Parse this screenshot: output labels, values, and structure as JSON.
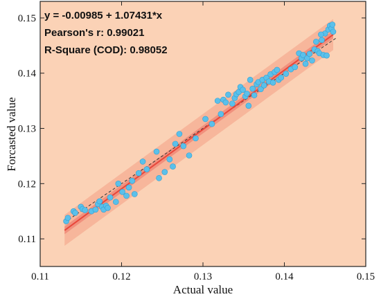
{
  "chart_data": {
    "type": "scatter",
    "xlabel": "Actual value",
    "ylabel": "Forcasted value",
    "xlim": [
      0.11,
      0.15
    ],
    "ylim": [
      0.105,
      0.153
    ],
    "xticks": [
      0.11,
      0.12,
      0.13,
      0.14,
      0.15
    ],
    "yticks": [
      0.11,
      0.12,
      0.13,
      0.14,
      0.15
    ],
    "xtick_labels": [
      "0.11",
      "0.12",
      "0.13",
      "0.14",
      "0.15"
    ],
    "ytick_labels": [
      "0.11",
      "0.12",
      "0.13",
      "0.14",
      "0.15"
    ],
    "annotations": [
      "y = -0.00985 + 1.07431*x",
      "Pearson's r: 0.99021",
      "R-Square (COD): 0.98052"
    ],
    "fit": {
      "intercept": -0.00985,
      "slope": 1.07431,
      "x_range": [
        0.113,
        0.146
      ]
    },
    "confidence_band_halfwidth": 0.0007,
    "prediction_band_halfwidth": 0.0028,
    "identity_line": true,
    "grid": false,
    "colors": {
      "background": "#fbd2b6",
      "points": "#5bc0ea",
      "points_edge": "#2f9fd3",
      "fit_line": "#e8463a",
      "confidence_band": "#f08a78",
      "prediction_band": "#f6ac92",
      "identity_line": "#333333"
    },
    "points": [
      [
        0.1132,
        0.1132
      ],
      [
        0.1134,
        0.1138
      ],
      [
        0.1141,
        0.115
      ],
      [
        0.1143,
        0.1147
      ],
      [
        0.115,
        0.1158
      ],
      [
        0.1152,
        0.1154
      ],
      [
        0.1155,
        0.1152
      ],
      [
        0.1163,
        0.115
      ],
      [
        0.1168,
        0.1153
      ],
      [
        0.1171,
        0.1163
      ],
      [
        0.1173,
        0.1168
      ],
      [
        0.1176,
        0.1158
      ],
      [
        0.1178,
        0.1153
      ],
      [
        0.1181,
        0.116
      ],
      [
        0.1183,
        0.1156
      ],
      [
        0.1186,
        0.1175
      ],
      [
        0.1193,
        0.1167
      ],
      [
        0.1196,
        0.12
      ],
      [
        0.1201,
        0.1185
      ],
      [
        0.1206,
        0.1178
      ],
      [
        0.1209,
        0.1193
      ],
      [
        0.1213,
        0.1205
      ],
      [
        0.1216,
        0.1181
      ],
      [
        0.1221,
        0.1219
      ],
      [
        0.1226,
        0.124
      ],
      [
        0.1231,
        0.1226
      ],
      [
        0.1243,
        0.1258
      ],
      [
        0.1246,
        0.121
      ],
      [
        0.1253,
        0.1221
      ],
      [
        0.1259,
        0.1244
      ],
      [
        0.1263,
        0.1231
      ],
      [
        0.1266,
        0.1272
      ],
      [
        0.1271,
        0.129
      ],
      [
        0.1276,
        0.1268
      ],
      [
        0.1283,
        0.1251
      ],
      [
        0.1291,
        0.1282
      ],
      [
        0.1303,
        0.1317
      ],
      [
        0.1311,
        0.1308
      ],
      [
        0.1318,
        0.135
      ],
      [
        0.1322,
        0.1326
      ],
      [
        0.1325,
        0.1352
      ],
      [
        0.1328,
        0.1347
      ],
      [
        0.1331,
        0.1361
      ],
      [
        0.1336,
        0.1345
      ],
      [
        0.1339,
        0.1355
      ],
      [
        0.1341,
        0.1362
      ],
      [
        0.1344,
        0.1366
      ],
      [
        0.1346,
        0.1375
      ],
      [
        0.1349,
        0.137
      ],
      [
        0.1352,
        0.1358
      ],
      [
        0.1354,
        0.1363
      ],
      [
        0.1356,
        0.1341
      ],
      [
        0.1358,
        0.1388
      ],
      [
        0.1361,
        0.1372
      ],
      [
        0.1363,
        0.136
      ],
      [
        0.1366,
        0.138
      ],
      [
        0.1368,
        0.1384
      ],
      [
        0.1371,
        0.1371
      ],
      [
        0.1373,
        0.1388
      ],
      [
        0.1375,
        0.1378
      ],
      [
        0.1378,
        0.1392
      ],
      [
        0.1381,
        0.1385
      ],
      [
        0.1383,
        0.1398
      ],
      [
        0.1386,
        0.1383
      ],
      [
        0.1388,
        0.1402
      ],
      [
        0.1391,
        0.1406
      ],
      [
        0.1393,
        0.1388
      ],
      [
        0.1396,
        0.1392
      ],
      [
        0.1402,
        0.1399
      ],
      [
        0.1408,
        0.1407
      ],
      [
        0.1413,
        0.1411
      ],
      [
        0.1418,
        0.1436
      ],
      [
        0.1421,
        0.1427
      ],
      [
        0.1423,
        0.1433
      ],
      [
        0.1426,
        0.1417
      ],
      [
        0.1428,
        0.1427
      ],
      [
        0.1431,
        0.1435
      ],
      [
        0.1434,
        0.1423
      ],
      [
        0.1437,
        0.1443
      ],
      [
        0.1439,
        0.1457
      ],
      [
        0.1441,
        0.144
      ],
      [
        0.1443,
        0.1436
      ],
      [
        0.1446,
        0.146
      ],
      [
        0.1448,
        0.1433
      ],
      [
        0.145,
        0.1472
      ],
      [
        0.1452,
        0.1432
      ],
      [
        0.1454,
        0.1479
      ],
      [
        0.1456,
        0.1486
      ],
      [
        0.1458,
        0.1481
      ],
      [
        0.1459,
        0.1488
      ],
      [
        0.146,
        0.1475
      ],
      [
        0.1445,
        0.147
      ]
    ]
  }
}
